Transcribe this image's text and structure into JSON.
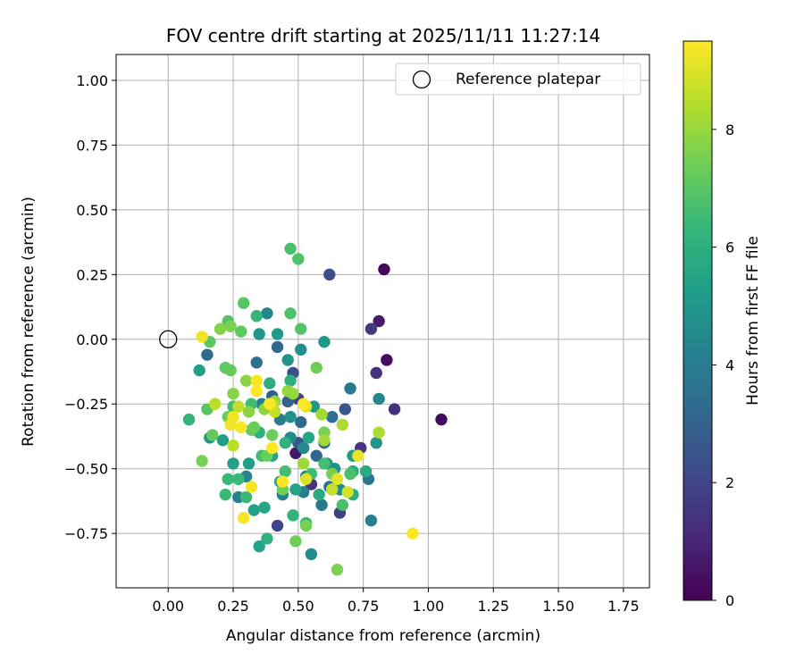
{
  "chart_data": {
    "type": "scatter",
    "title": "FOV centre drift starting at 2025/11/11 11:27:14",
    "xlabel": "Angular distance from reference (arcmin)",
    "ylabel": "Rotation from reference (arcmin)",
    "xlim": [
      -0.2,
      1.85
    ],
    "ylim": [
      -0.96,
      1.1
    ],
    "xticks": [
      0.0,
      0.25,
      0.5,
      0.75,
      1.0,
      1.25,
      1.5,
      1.75
    ],
    "xtick_labels": [
      "0.00",
      "0.25",
      "0.50",
      "0.75",
      "1.00",
      "1.25",
      "1.50",
      "1.75"
    ],
    "yticks": [
      -0.75,
      -0.5,
      -0.25,
      0.0,
      0.25,
      0.5,
      0.75,
      1.0
    ],
    "ytick_labels": [
      "−0.75",
      "−0.50",
      "−0.25",
      "0.00",
      "0.25",
      "0.50",
      "0.75",
      "1.00"
    ],
    "grid": true,
    "legend": {
      "label": "Reference platepar",
      "placement": "top-right"
    },
    "reference_point": {
      "x": 0.0,
      "y": 0.0
    },
    "colorbar": {
      "label": "Hours from first FF file",
      "range": [
        0,
        9.5
      ],
      "colormap": [
        "#440154",
        "#482878",
        "#3e4989",
        "#31688e",
        "#26828e",
        "#1f9e89",
        "#35b779",
        "#6ece58",
        "#b5de2b",
        "#fde725"
      ],
      "ticks": [
        0,
        2,
        4,
        6,
        8
      ],
      "tick_labels": [
        "0",
        "2",
        "4",
        "6",
        "8"
      ]
    },
    "points": [
      {
        "x": 0.83,
        "y": 0.27,
        "h": 0.2
      },
      {
        "x": 1.05,
        "y": -0.31,
        "h": 0.3
      },
      {
        "x": 0.84,
        "y": -0.08,
        "h": 0.3
      },
      {
        "x": 0.81,
        "y": 0.07,
        "h": 0.7
      },
      {
        "x": 0.87,
        "y": -0.27,
        "h": 1.3
      },
      {
        "x": 0.8,
        "y": -0.13,
        "h": 1.4
      },
      {
        "x": 0.78,
        "y": 0.04,
        "h": 1.6
      },
      {
        "x": 0.62,
        "y": 0.25,
        "h": 2.3
      },
      {
        "x": 0.66,
        "y": -0.67,
        "h": 1.8
      },
      {
        "x": 0.74,
        "y": -0.42,
        "h": 1.5
      },
      {
        "x": 0.42,
        "y": -0.72,
        "h": 2.0
      },
      {
        "x": 0.49,
        "y": -0.44,
        "h": 0.6
      },
      {
        "x": 0.5,
        "y": -0.23,
        "h": 1.9
      },
      {
        "x": 0.55,
        "y": -0.56,
        "h": 1.4
      },
      {
        "x": 0.5,
        "y": -0.4,
        "h": 2.6
      },
      {
        "x": 0.48,
        "y": -0.13,
        "h": 2.4
      },
      {
        "x": 0.42,
        "y": -0.03,
        "h": 3.2
      },
      {
        "x": 0.34,
        "y": -0.09,
        "h": 3.5
      },
      {
        "x": 0.4,
        "y": -0.22,
        "h": 2.9
      },
      {
        "x": 0.15,
        "y": -0.06,
        "h": 3.3
      },
      {
        "x": 0.46,
        "y": -0.24,
        "h": 3.0
      },
      {
        "x": 0.53,
        "y": -0.53,
        "h": 3.4
      },
      {
        "x": 0.51,
        "y": -0.32,
        "h": 3.2
      },
      {
        "x": 0.57,
        "y": -0.45,
        "h": 3.1
      },
      {
        "x": 0.6,
        "y": -0.4,
        "h": 3.6
      },
      {
        "x": 0.63,
        "y": -0.3,
        "h": 3.4
      },
      {
        "x": 0.7,
        "y": -0.19,
        "h": 3.8
      },
      {
        "x": 0.68,
        "y": -0.27,
        "h": 2.6
      },
      {
        "x": 0.62,
        "y": -0.57,
        "h": 3.5
      },
      {
        "x": 0.59,
        "y": -0.64,
        "h": 3.8
      },
      {
        "x": 0.77,
        "y": -0.54,
        "h": 3.7
      },
      {
        "x": 0.78,
        "y": -0.7,
        "h": 4.2
      },
      {
        "x": 0.36,
        "y": -0.25,
        "h": 4.1
      },
      {
        "x": 0.38,
        "y": 0.1,
        "h": 4.4
      },
      {
        "x": 0.43,
        "y": -0.31,
        "h": 4.0
      },
      {
        "x": 0.47,
        "y": -0.38,
        "h": 4.5
      },
      {
        "x": 0.44,
        "y": -0.6,
        "h": 4.2
      },
      {
        "x": 0.52,
        "y": -0.59,
        "h": 4.0
      },
      {
        "x": 0.55,
        "y": -0.83,
        "h": 4.6
      },
      {
        "x": 0.3,
        "y": -0.53,
        "h": 4.3
      },
      {
        "x": 0.27,
        "y": -0.61,
        "h": 4.1
      },
      {
        "x": 0.35,
        "y": 0.02,
        "h": 4.9
      },
      {
        "x": 0.47,
        "y": -0.3,
        "h": 4.8
      },
      {
        "x": 0.52,
        "y": -0.42,
        "h": 4.5
      },
      {
        "x": 0.56,
        "y": -0.26,
        "h": 5.0
      },
      {
        "x": 0.61,
        "y": -0.48,
        "h": 4.7
      },
      {
        "x": 0.64,
        "y": -0.5,
        "h": 4.8
      },
      {
        "x": 0.66,
        "y": -0.58,
        "h": 4.6
      },
      {
        "x": 0.71,
        "y": -0.45,
        "h": 5.2
      },
      {
        "x": 0.81,
        "y": -0.23,
        "h": 4.4
      },
      {
        "x": 0.8,
        "y": -0.4,
        "h": 4.9
      },
      {
        "x": 0.6,
        "y": -0.01,
        "h": 5.0
      },
      {
        "x": 0.51,
        "y": -0.04,
        "h": 4.7
      },
      {
        "x": 0.46,
        "y": -0.08,
        "h": 4.9
      },
      {
        "x": 0.42,
        "y": 0.02,
        "h": 5.1
      },
      {
        "x": 0.12,
        "y": -0.12,
        "h": 5.3
      },
      {
        "x": 0.16,
        "y": -0.38,
        "h": 5.0
      },
      {
        "x": 0.21,
        "y": -0.39,
        "h": 5.2
      },
      {
        "x": 0.25,
        "y": -0.48,
        "h": 5.4
      },
      {
        "x": 0.31,
        "y": -0.48,
        "h": 5.3
      },
      {
        "x": 0.33,
        "y": -0.66,
        "h": 5.4
      },
      {
        "x": 0.35,
        "y": -0.8,
        "h": 5.5
      },
      {
        "x": 0.37,
        "y": -0.65,
        "h": 5.6
      },
      {
        "x": 0.4,
        "y": -0.45,
        "h": 5.5
      },
      {
        "x": 0.43,
        "y": -0.55,
        "h": 5.7
      },
      {
        "x": 0.49,
        "y": -0.58,
        "h": 5.5
      },
      {
        "x": 0.54,
        "y": -0.38,
        "h": 5.6
      },
      {
        "x": 0.58,
        "y": -0.6,
        "h": 5.8
      },
      {
        "x": 0.63,
        "y": -0.58,
        "h": 5.7
      },
      {
        "x": 0.71,
        "y": -0.51,
        "h": 5.9
      },
      {
        "x": 0.76,
        "y": -0.51,
        "h": 5.8
      },
      {
        "x": 0.71,
        "y": -0.6,
        "h": 5.9
      },
      {
        "x": 0.47,
        "y": -0.16,
        "h": 6.0
      },
      {
        "x": 0.39,
        "y": -0.17,
        "h": 6.0
      },
      {
        "x": 0.35,
        "y": -0.36,
        "h": 6.0
      },
      {
        "x": 0.45,
        "y": -0.4,
        "h": 6.1
      },
      {
        "x": 0.38,
        "y": -0.77,
        "h": 6.1
      },
      {
        "x": 0.48,
        "y": -0.68,
        "h": 6.2
      },
      {
        "x": 0.53,
        "y": -0.71,
        "h": 6.2
      },
      {
        "x": 0.34,
        "y": 0.09,
        "h": 6.3
      },
      {
        "x": 0.08,
        "y": -0.31,
        "h": 6.2
      },
      {
        "x": 0.23,
        "y": -0.54,
        "h": 6.4
      },
      {
        "x": 0.27,
        "y": -0.54,
        "h": 6.4
      },
      {
        "x": 0.3,
        "y": -0.61,
        "h": 6.4
      },
      {
        "x": 0.22,
        "y": -0.6,
        "h": 6.4
      },
      {
        "x": 0.25,
        "y": -0.26,
        "h": 6.5
      },
      {
        "x": 0.32,
        "y": -0.25,
        "h": 6.5
      },
      {
        "x": 0.36,
        "y": -0.45,
        "h": 6.6
      },
      {
        "x": 0.45,
        "y": -0.51,
        "h": 6.6
      },
      {
        "x": 0.55,
        "y": -0.52,
        "h": 6.5
      },
      {
        "x": 0.6,
        "y": -0.48,
        "h": 6.6
      },
      {
        "x": 0.67,
        "y": -0.64,
        "h": 6.7
      },
      {
        "x": 0.7,
        "y": -0.52,
        "h": 6.7
      },
      {
        "x": 0.47,
        "y": 0.35,
        "h": 6.7
      },
      {
        "x": 0.5,
        "y": 0.31,
        "h": 6.8
      },
      {
        "x": 0.47,
        "y": 0.1,
        "h": 6.8
      },
      {
        "x": 0.51,
        "y": 0.04,
        "h": 6.9
      },
      {
        "x": 0.23,
        "y": 0.07,
        "h": 6.9
      },
      {
        "x": 0.29,
        "y": 0.14,
        "h": 7.0
      },
      {
        "x": 0.16,
        "y": -0.01,
        "h": 7.0
      },
      {
        "x": 0.28,
        "y": 0.03,
        "h": 7.1
      },
      {
        "x": 0.22,
        "y": -0.11,
        "h": 7.1
      },
      {
        "x": 0.24,
        "y": -0.12,
        "h": 7.2
      },
      {
        "x": 0.15,
        "y": -0.27,
        "h": 7.0
      },
      {
        "x": 0.17,
        "y": -0.37,
        "h": 7.2
      },
      {
        "x": 0.23,
        "y": -0.3,
        "h": 7.3
      },
      {
        "x": 0.32,
        "y": -0.35,
        "h": 7.2
      },
      {
        "x": 0.33,
        "y": -0.34,
        "h": 7.3
      },
      {
        "x": 0.38,
        "y": -0.45,
        "h": 7.3
      },
      {
        "x": 0.4,
        "y": -0.37,
        "h": 7.3
      },
      {
        "x": 0.44,
        "y": -0.58,
        "h": 7.4
      },
      {
        "x": 0.49,
        "y": -0.78,
        "h": 7.4
      },
      {
        "x": 0.53,
        "y": -0.72,
        "h": 7.5
      },
      {
        "x": 0.57,
        "y": -0.11,
        "h": 7.4
      },
      {
        "x": 0.6,
        "y": -0.36,
        "h": 7.5
      },
      {
        "x": 0.63,
        "y": -0.52,
        "h": 7.5
      },
      {
        "x": 0.65,
        "y": -0.89,
        "h": 7.6
      },
      {
        "x": 0.13,
        "y": -0.47,
        "h": 7.5
      },
      {
        "x": 0.24,
        "y": 0.05,
        "h": 7.6
      },
      {
        "x": 0.2,
        "y": 0.04,
        "h": 7.7
      },
      {
        "x": 0.25,
        "y": -0.21,
        "h": 7.7
      },
      {
        "x": 0.3,
        "y": -0.16,
        "h": 7.8
      },
      {
        "x": 0.31,
        "y": -0.28,
        "h": 7.8
      },
      {
        "x": 0.37,
        "y": -0.27,
        "h": 7.9
      },
      {
        "x": 0.41,
        "y": -0.24,
        "h": 7.9
      },
      {
        "x": 0.46,
        "y": -0.2,
        "h": 8.0
      },
      {
        "x": 0.48,
        "y": -0.21,
        "h": 8.0
      },
      {
        "x": 0.52,
        "y": -0.48,
        "h": 8.1
      },
      {
        "x": 0.59,
        "y": -0.29,
        "h": 8.2
      },
      {
        "x": 0.6,
        "y": -0.39,
        "h": 8.2
      },
      {
        "x": 0.67,
        "y": -0.33,
        "h": 8.3
      },
      {
        "x": 0.81,
        "y": -0.36,
        "h": 8.3
      },
      {
        "x": 0.18,
        "y": -0.25,
        "h": 8.5
      },
      {
        "x": 0.25,
        "y": -0.41,
        "h": 8.5
      },
      {
        "x": 0.27,
        "y": -0.26,
        "h": 8.6
      },
      {
        "x": 0.4,
        "y": -0.25,
        "h": 8.6
      },
      {
        "x": 0.41,
        "y": -0.28,
        "h": 8.7
      },
      {
        "x": 0.63,
        "y": -0.58,
        "h": 8.7
      },
      {
        "x": 0.69,
        "y": -0.59,
        "h": 8.9
      },
      {
        "x": 0.53,
        "y": -0.26,
        "h": 9.0
      },
      {
        "x": 0.53,
        "y": -0.54,
        "h": 9.0
      },
      {
        "x": 0.65,
        "y": -0.54,
        "h": 9.1
      },
      {
        "x": 0.73,
        "y": -0.45,
        "h": 9.2
      },
      {
        "x": 0.13,
        "y": 0.01,
        "h": 9.3
      },
      {
        "x": 0.24,
        "y": -0.33,
        "h": 9.3
      },
      {
        "x": 0.25,
        "y": -0.3,
        "h": 9.3
      },
      {
        "x": 0.28,
        "y": -0.34,
        "h": 9.4
      },
      {
        "x": 0.29,
        "y": -0.69,
        "h": 9.4
      },
      {
        "x": 0.32,
        "y": -0.57,
        "h": 9.4
      },
      {
        "x": 0.34,
        "y": -0.16,
        "h": 9.4
      },
      {
        "x": 0.34,
        "y": -0.2,
        "h": 9.5
      },
      {
        "x": 0.39,
        "y": -0.25,
        "h": 9.5
      },
      {
        "x": 0.4,
        "y": -0.42,
        "h": 9.5
      },
      {
        "x": 0.44,
        "y": -0.55,
        "h": 9.5
      },
      {
        "x": 0.52,
        "y": -0.25,
        "h": 9.5
      },
      {
        "x": 0.94,
        "y": -0.75,
        "h": 9.5
      }
    ]
  }
}
